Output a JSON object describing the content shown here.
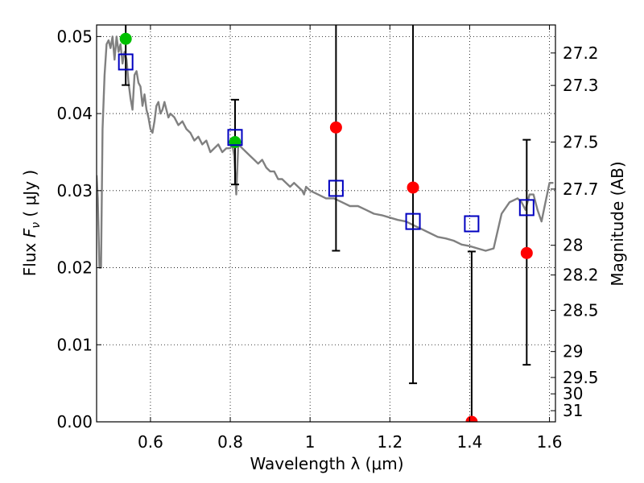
{
  "chart_data": {
    "type": "scatter",
    "xlabel": "Wavelength  λ (μm)",
    "ylabel_prefix": "Flux ",
    "ylabel_symbol": "F",
    "ylabel_subscript": "ν",
    "ylabel_units": " ( μJy )",
    "y2label": "Magnitude (AB)",
    "xlim": [
      0.465,
      1.615
    ],
    "ylim": [
      0.0,
      0.0515
    ],
    "x_ticks": [
      0.6,
      0.8,
      1.0,
      1.2,
      1.4,
      1.6
    ],
    "x_tick_labels": [
      "0.6",
      "0.8",
      "1",
      "1.2",
      "1.4",
      "1.6"
    ],
    "y_ticks": [
      0.0,
      0.01,
      0.02,
      0.03,
      0.04,
      0.05
    ],
    "y_tick_labels": [
      "0.00",
      "0.01",
      "0.02",
      "0.03",
      "0.04",
      "0.05"
    ],
    "y2_tick_labels": [
      "27.2",
      "27.3",
      "27.5",
      "27.7",
      "28",
      "28.2",
      "28.5",
      "29",
      "29.5",
      "30",
      "31"
    ],
    "grid": true,
    "colors": {
      "model": "#808080",
      "observed": "#ff0000",
      "green": "#00c000",
      "model_box": "#0000c0",
      "errorbar": "#000000"
    },
    "series": [
      {
        "name": "model SED",
        "style": "line",
        "x": [
          0.465,
          0.468,
          0.472,
          0.476,
          0.48,
          0.485,
          0.49,
          0.495,
          0.5,
          0.505,
          0.51,
          0.515,
          0.52,
          0.525,
          0.53,
          0.535,
          0.54,
          0.545,
          0.55,
          0.555,
          0.56,
          0.565,
          0.57,
          0.575,
          0.58,
          0.585,
          0.59,
          0.595,
          0.6,
          0.605,
          0.61,
          0.615,
          0.62,
          0.625,
          0.63,
          0.635,
          0.64,
          0.645,
          0.65,
          0.66,
          0.67,
          0.68,
          0.69,
          0.7,
          0.71,
          0.72,
          0.73,
          0.74,
          0.75,
          0.76,
          0.77,
          0.78,
          0.79,
          0.8,
          0.805,
          0.81,
          0.815,
          0.82,
          0.83,
          0.84,
          0.85,
          0.86,
          0.87,
          0.88,
          0.89,
          0.9,
          0.91,
          0.92,
          0.93,
          0.94,
          0.95,
          0.96,
          0.97,
          0.98,
          0.985,
          0.99,
          1.0,
          1.02,
          1.04,
          1.06,
          1.08,
          1.1,
          1.12,
          1.14,
          1.16,
          1.18,
          1.2,
          1.22,
          1.24,
          1.26,
          1.28,
          1.3,
          1.32,
          1.34,
          1.36,
          1.38,
          1.4,
          1.42,
          1.44,
          1.46,
          1.48,
          1.5,
          1.52,
          1.53,
          1.54,
          1.55,
          1.56,
          1.57,
          1.58,
          1.59,
          1.6,
          1.61
        ],
        "y": [
          0.032,
          0.029,
          0.02,
          0.02,
          0.038,
          0.045,
          0.049,
          0.0495,
          0.0485,
          0.05,
          0.047,
          0.05,
          0.048,
          0.049,
          0.0465,
          0.048,
          0.047,
          0.044,
          0.042,
          0.0405,
          0.045,
          0.0455,
          0.044,
          0.0435,
          0.041,
          0.0425,
          0.0405,
          0.0395,
          0.038,
          0.0375,
          0.039,
          0.041,
          0.0415,
          0.04,
          0.0405,
          0.0415,
          0.0405,
          0.0395,
          0.04,
          0.0395,
          0.0385,
          0.039,
          0.038,
          0.0375,
          0.0365,
          0.037,
          0.036,
          0.0365,
          0.035,
          0.0355,
          0.036,
          0.035,
          0.0355,
          0.0355,
          0.036,
          0.0345,
          0.0295,
          0.036,
          0.0355,
          0.035,
          0.0345,
          0.034,
          0.0335,
          0.034,
          0.033,
          0.0325,
          0.0325,
          0.0315,
          0.0315,
          0.031,
          0.0305,
          0.031,
          0.0305,
          0.03,
          0.0295,
          0.0305,
          0.03,
          0.0295,
          0.029,
          0.029,
          0.0285,
          0.028,
          0.028,
          0.0275,
          0.027,
          0.0268,
          0.0265,
          0.0262,
          0.026,
          0.0255,
          0.025,
          0.0245,
          0.024,
          0.0238,
          0.0235,
          0.023,
          0.0228,
          0.0225,
          0.0222,
          0.0225,
          0.027,
          0.0285,
          0.029,
          0.0285,
          0.0275,
          0.0295,
          0.0295,
          0.0275,
          0.026,
          0.0285,
          0.031,
          0.031
        ]
      },
      {
        "name": "observed flux",
        "style": "points",
        "marker": "circle",
        "x": [
          1.065,
          1.258,
          1.405,
          1.543
        ],
        "y": [
          0.0382,
          0.0304,
          0.0,
          0.0219
        ]
      },
      {
        "name": "green points",
        "style": "points",
        "marker": "circle",
        "x": [
          0.538,
          0.812
        ],
        "y": [
          0.0497,
          0.0363
        ]
      },
      {
        "name": "model photometry",
        "style": "points",
        "marker": "square",
        "x": [
          0.538,
          0.812,
          1.065,
          1.258,
          1.405,
          1.543
        ],
        "y": [
          0.0467,
          0.0369,
          0.0303,
          0.026,
          0.0257,
          0.0278
        ]
      },
      {
        "name": "error bars",
        "style": "errorbar",
        "x": [
          0.538,
          0.812,
          1.065,
          1.258,
          1.405,
          1.543
        ],
        "y_low": [
          0.0437,
          0.0308,
          0.0222,
          0.005,
          0.0,
          0.0074
        ],
        "y_high": [
          0.0515,
          0.0418,
          0.0515,
          0.0515,
          0.0221,
          0.0366
        ],
        "cap_low": [
          true,
          true,
          true,
          true,
          false,
          true
        ],
        "cap_high": [
          false,
          true,
          false,
          false,
          true,
          true
        ]
      }
    ]
  }
}
